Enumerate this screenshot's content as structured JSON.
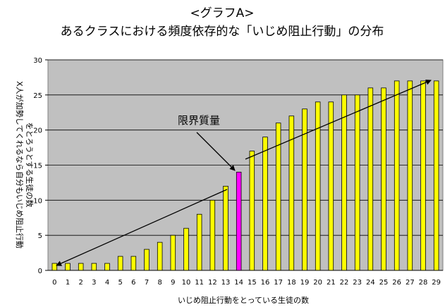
{
  "chart_data": {
    "type": "bar",
    "title": "<グラフA>",
    "subtitle": "あるクラスにおける頻度依存的な「いじめ阻止行動」の分布",
    "xlabel": "いじめ阻止行動をとっている生徒の数",
    "ylabel_line1": "X人が加勢してくれるなら自分もいじめ阻止行動",
    "ylabel_line2": "をとろうとする生徒の数",
    "ylim": [
      0,
      30
    ],
    "yticks": [
      0,
      5,
      10,
      15,
      20,
      25,
      30
    ],
    "grid": "horizontal",
    "categories": [
      "0",
      "1",
      "2",
      "3",
      "4",
      "5",
      "6",
      "7",
      "8",
      "9",
      "10",
      "11",
      "12",
      "13",
      "14",
      "15",
      "16",
      "17",
      "18",
      "19",
      "20",
      "21",
      "22",
      "23",
      "24",
      "25",
      "26",
      "27",
      "28",
      "29"
    ],
    "values": [
      1,
      1,
      1,
      1,
      1,
      2,
      2,
      3,
      4,
      5,
      6,
      8,
      10,
      12,
      14,
      17,
      19,
      21,
      22,
      23,
      24,
      24,
      25,
      25,
      26,
      26,
      27,
      27,
      27,
      27
    ],
    "highlight_index": 14,
    "annotation": "限界質量",
    "colors": {
      "bar": "#ffff00",
      "highlight": "#ff00ff",
      "plot_background": "#c0c0c0",
      "bar_edge": "#000000"
    }
  }
}
